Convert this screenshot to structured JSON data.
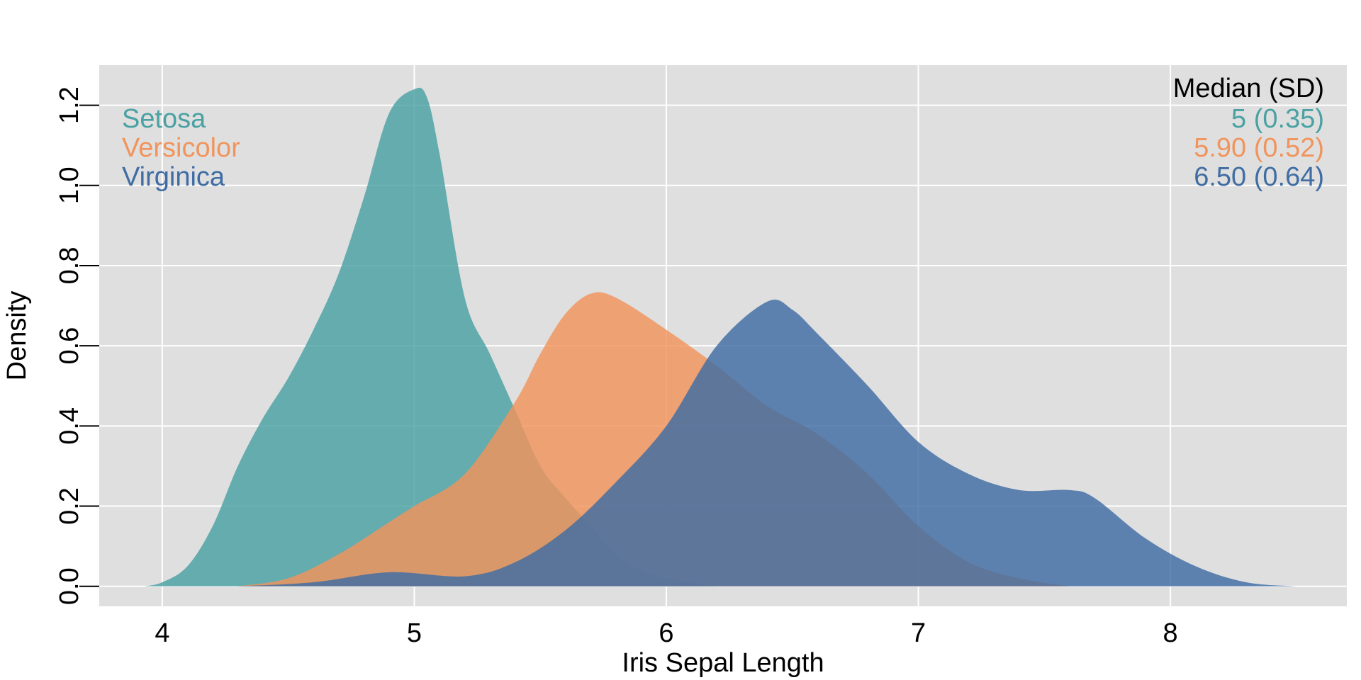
{
  "chart_data": {
    "type": "area",
    "xlabel": "Iris Sepal Length",
    "ylabel": "Density",
    "xlim": [
      3.75,
      8.7
    ],
    "ylim": [
      -0.05,
      1.3
    ],
    "x_ticks": [
      4,
      5,
      6,
      7,
      8
    ],
    "x_tick_labels": [
      "4",
      "5",
      "6",
      "7",
      "8"
    ],
    "y_ticks": [
      0.0,
      0.2,
      0.4,
      0.6,
      0.8,
      1.0,
      1.2
    ],
    "y_tick_labels": [
      "0.0",
      "0.2",
      "0.4",
      "0.6",
      "0.8",
      "1.0",
      "1.2"
    ],
    "grid": true,
    "background": "#dfdfdf",
    "grid_color": "#ffffff",
    "legend": {
      "position": "top-left",
      "stats_header": "Median (SD)",
      "stats_position": "top-right"
    },
    "series": [
      {
        "name": "Setosa",
        "stat": "5 (0.35)",
        "color": "#4aa1a3",
        "x": [
          3.93,
          4.0,
          4.1,
          4.2,
          4.3,
          4.4,
          4.5,
          4.6,
          4.7,
          4.8,
          4.9,
          5.0,
          5.05,
          5.1,
          5.2,
          5.3,
          5.4,
          5.5,
          5.6,
          5.7,
          5.8,
          5.9,
          6.0,
          6.1,
          6.2
        ],
        "y": [
          0.0,
          0.01,
          0.05,
          0.15,
          0.3,
          0.42,
          0.52,
          0.64,
          0.78,
          0.97,
          1.18,
          1.24,
          1.22,
          1.08,
          0.72,
          0.58,
          0.44,
          0.3,
          0.22,
          0.15,
          0.08,
          0.04,
          0.02,
          0.01,
          0.0
        ]
      },
      {
        "name": "Versicolor",
        "stat": "5.90 (0.52)",
        "color": "#f1945b",
        "x": [
          4.3,
          4.5,
          4.7,
          4.9,
          5.0,
          5.2,
          5.4,
          5.5,
          5.6,
          5.7,
          5.8,
          6.0,
          6.2,
          6.4,
          6.6,
          6.8,
          7.0,
          7.2,
          7.4,
          7.6
        ],
        "y": [
          0.0,
          0.02,
          0.08,
          0.16,
          0.2,
          0.28,
          0.46,
          0.58,
          0.68,
          0.73,
          0.72,
          0.64,
          0.55,
          0.45,
          0.38,
          0.28,
          0.15,
          0.06,
          0.02,
          0.0
        ]
      },
      {
        "name": "Virginica",
        "stat": "6.50 (0.64)",
        "color": "#3f6da3",
        "x": [
          4.3,
          4.6,
          4.9,
          5.2,
          5.4,
          5.6,
          5.8,
          6.0,
          6.2,
          6.4,
          6.5,
          6.6,
          6.8,
          7.0,
          7.2,
          7.4,
          7.6,
          7.7,
          7.9,
          8.1,
          8.3,
          8.5
        ],
        "y": [
          0.0,
          0.01,
          0.035,
          0.025,
          0.06,
          0.14,
          0.26,
          0.4,
          0.6,
          0.71,
          0.69,
          0.63,
          0.5,
          0.36,
          0.28,
          0.24,
          0.24,
          0.22,
          0.12,
          0.05,
          0.01,
          0.0
        ]
      }
    ]
  }
}
